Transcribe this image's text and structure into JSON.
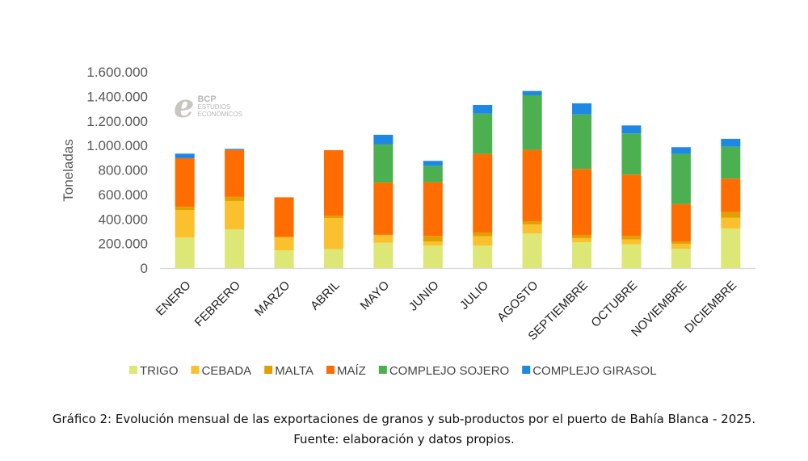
{
  "chart_data": {
    "type": "bar",
    "stacked": true,
    "ylabel": "Toneladas",
    "xlabel": "",
    "ylim": [
      0,
      1600000
    ],
    "yticks": [
      0,
      200000,
      400000,
      600000,
      800000,
      1000000,
      1200000,
      1400000,
      1600000
    ],
    "ytick_labels": [
      "0",
      "200.000",
      "400.000",
      "600.000",
      "800.000",
      "1.000.000",
      "1.200.000",
      "1.400.000",
      "1.600.000"
    ],
    "grid": false,
    "legend_position": "bottom",
    "categories": [
      "ENERO",
      "FEBRERO",
      "MARZO",
      "ABRIL",
      "MAYO",
      "JUNIO",
      "JULIO",
      "AGOSTO",
      "SEPTIEMBRE",
      "OCTUBRE",
      "NOVIEMBRE",
      "DICIEMBRE"
    ],
    "series": [
      {
        "name": "TRIGO",
        "color": "#dce775",
        "values": [
          250000,
          316000,
          145000,
          154000,
          206000,
          184000,
          184000,
          281000,
          211000,
          193000,
          158000,
          323000
        ]
      },
      {
        "name": "CEBADA",
        "color": "#fbc02d",
        "values": [
          224000,
          231000,
          103000,
          254000,
          62000,
          33000,
          75000,
          75000,
          33000,
          40000,
          40000,
          87000
        ]
      },
      {
        "name": "MALTA",
        "color": "#e0a000",
        "values": [
          26000,
          33000,
          7000,
          18000,
          3000,
          44000,
          29000,
          26000,
          26000,
          28000,
          17000,
          47000
        ]
      },
      {
        "name": "MAÍZ",
        "color": "#ff6d00",
        "values": [
          396000,
          384000,
          322000,
          535000,
          426000,
          439000,
          643000,
          582000,
          538000,
          501000,
          307000,
          272000
        ]
      },
      {
        "name": "COMPLEJO SOJERO",
        "color": "#4caf50",
        "values": [
          0,
          0,
          0,
          0,
          311000,
          134000,
          329000,
          445000,
          445000,
          336000,
          409000,
          261000
        ]
      },
      {
        "name": "COMPLEJO GIRASOL",
        "color": "#1e88e5",
        "values": [
          37000,
          8000,
          0,
          0,
          79000,
          40000,
          70000,
          35000,
          90000,
          65000,
          55000,
          64000
        ]
      }
    ]
  },
  "logo": {
    "line1": "BCP",
    "line2": "ESTUDIOS",
    "line3": "ECONÓMICOS"
  },
  "caption": {
    "line1": "Gráfico 2: Evolución mensual de las exportaciones de granos y sub-productos por el puerto de Bahía Blanca - 2025.",
    "line2": "Fuente: elaboración y datos propios."
  }
}
